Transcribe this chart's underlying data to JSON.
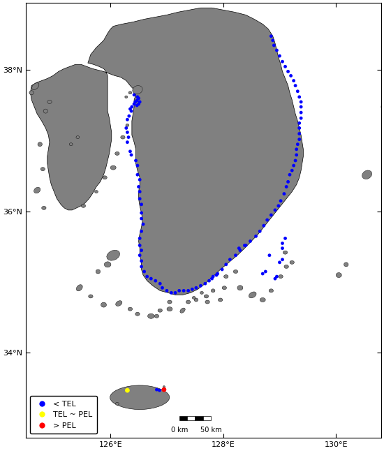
{
  "lon_min": 124.5,
  "lon_max": 130.8,
  "lat_min": 32.8,
  "lat_max": 38.95,
  "land_color": "#808080",
  "water_color": "#ffffff",
  "border_color": "#000000",
  "point_colors": {
    "TEL": "#0000ff",
    "TEL_PEL": "#ffff00",
    "PEL": "#ff0000"
  },
  "point_size": 12,
  "legend_labels": [
    "< TEL",
    "TEL ~ PEL",
    "> PEL"
  ],
  "xticks": [
    126,
    128,
    130
  ],
  "yticks": [
    34,
    36,
    38
  ],
  "xtick_labels": [
    "126°E",
    "128°E",
    "130°E"
  ],
  "ytick_labels": [
    "34°N",
    "36°N",
    "38°N"
  ],
  "TEL_points": [
    [
      126.42,
      37.52
    ],
    [
      126.44,
      37.55
    ],
    [
      126.47,
      37.57
    ],
    [
      126.5,
      37.6
    ],
    [
      126.52,
      37.55
    ],
    [
      126.5,
      37.52
    ],
    [
      126.47,
      37.5
    ],
    [
      126.38,
      37.48
    ],
    [
      126.35,
      37.45
    ],
    [
      126.37,
      37.42
    ],
    [
      126.33,
      37.35
    ],
    [
      126.3,
      37.3
    ],
    [
      126.28,
      37.18
    ],
    [
      126.3,
      37.12
    ],
    [
      126.32,
      37.05
    ],
    [
      126.3,
      36.98
    ],
    [
      126.35,
      36.85
    ],
    [
      126.37,
      36.8
    ],
    [
      126.45,
      36.72
    ],
    [
      126.48,
      36.65
    ],
    [
      126.48,
      36.52
    ],
    [
      126.52,
      36.45
    ],
    [
      126.5,
      36.35
    ],
    [
      126.52,
      36.28
    ],
    [
      126.52,
      36.18
    ],
    [
      126.55,
      36.1
    ],
    [
      126.55,
      35.98
    ],
    [
      126.55,
      35.9
    ],
    [
      126.58,
      35.82
    ],
    [
      126.55,
      35.72
    ],
    [
      126.52,
      35.62
    ],
    [
      126.52,
      35.52
    ],
    [
      126.55,
      35.45
    ],
    [
      126.52,
      35.38
    ],
    [
      126.55,
      35.3
    ],
    [
      126.55,
      35.22
    ],
    [
      126.6,
      35.15
    ],
    [
      126.65,
      35.08
    ],
    [
      126.72,
      35.05
    ],
    [
      126.8,
      35.02
    ],
    [
      126.88,
      34.98
    ],
    [
      126.92,
      34.92
    ],
    [
      127.0,
      34.88
    ],
    [
      127.08,
      34.85
    ],
    [
      127.15,
      34.85
    ],
    [
      127.22,
      34.88
    ],
    [
      127.3,
      34.88
    ],
    [
      127.38,
      34.88
    ],
    [
      127.45,
      34.9
    ],
    [
      127.52,
      34.92
    ],
    [
      127.6,
      34.95
    ],
    [
      127.68,
      34.98
    ],
    [
      127.75,
      35.02
    ],
    [
      127.82,
      35.08
    ],
    [
      127.9,
      35.12
    ],
    [
      127.98,
      35.18
    ],
    [
      128.05,
      35.25
    ],
    [
      128.12,
      35.32
    ],
    [
      128.22,
      35.38
    ],
    [
      128.3,
      35.45
    ],
    [
      128.4,
      35.52
    ],
    [
      128.48,
      35.58
    ],
    [
      128.58,
      35.65
    ],
    [
      128.65,
      35.72
    ],
    [
      128.72,
      35.8
    ],
    [
      128.78,
      35.88
    ],
    [
      128.85,
      35.95
    ],
    [
      128.92,
      36.02
    ],
    [
      128.98,
      36.08
    ],
    [
      129.02,
      36.15
    ],
    [
      129.08,
      36.25
    ],
    [
      129.12,
      36.35
    ],
    [
      129.15,
      36.42
    ],
    [
      129.18,
      36.52
    ],
    [
      129.22,
      36.58
    ],
    [
      129.25,
      36.65
    ],
    [
      129.28,
      36.72
    ],
    [
      129.3,
      36.8
    ],
    [
      129.3,
      36.88
    ],
    [
      129.32,
      36.95
    ],
    [
      129.35,
      37.02
    ],
    [
      129.35,
      37.1
    ],
    [
      129.35,
      37.18
    ],
    [
      129.35,
      37.25
    ],
    [
      129.38,
      37.32
    ],
    [
      129.38,
      37.4
    ],
    [
      129.38,
      37.48
    ],
    [
      129.38,
      37.55
    ],
    [
      129.35,
      37.62
    ],
    [
      129.32,
      37.7
    ],
    [
      129.28,
      37.78
    ],
    [
      129.25,
      37.85
    ],
    [
      129.2,
      37.92
    ],
    [
      129.15,
      37.98
    ],
    [
      129.1,
      38.05
    ],
    [
      129.05,
      38.12
    ],
    [
      129.0,
      38.2
    ],
    [
      128.95,
      38.28
    ],
    [
      128.9,
      38.35
    ],
    [
      128.88,
      38.42
    ],
    [
      128.85,
      38.48
    ],
    [
      126.82,
      33.48
    ],
    [
      126.87,
      33.47
    ],
    [
      128.95,
      35.08
    ],
    [
      128.92,
      35.05
    ],
    [
      128.75,
      35.15
    ],
    [
      128.7,
      35.12
    ],
    [
      129.05,
      35.32
    ],
    [
      129.0,
      35.28
    ],
    [
      128.82,
      35.38
    ],
    [
      126.48,
      37.62
    ],
    [
      126.42,
      37.65
    ],
    [
      128.38,
      35.52
    ],
    [
      128.28,
      35.48
    ],
    [
      127.88,
      35.1
    ],
    [
      127.8,
      35.05
    ],
    [
      129.05,
      35.55
    ],
    [
      129.1,
      35.62
    ],
    [
      129.05,
      35.48
    ]
  ],
  "TEL_PEL_points": [
    [
      126.3,
      33.47
    ]
  ],
  "PEL_points": [
    [
      126.95,
      33.48
    ]
  ]
}
